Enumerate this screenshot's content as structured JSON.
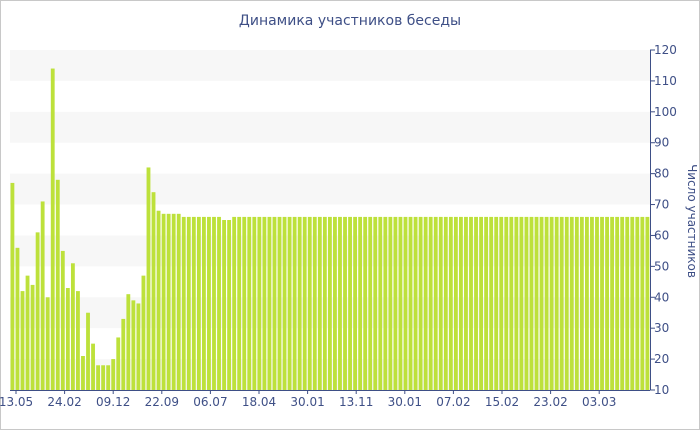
{
  "chart_data": {
    "type": "bar",
    "title": "Динамика участников беседы",
    "ylabel": "Число участников",
    "xlabel": "",
    "ylim": [
      10,
      120
    ],
    "yticks": [
      10,
      20,
      30,
      40,
      50,
      60,
      70,
      80,
      90,
      100,
      110,
      120
    ],
    "y_axis_position": "right",
    "grid": "horizontal alternating bands",
    "x_tick_labels": [
      "13.05",
      "24.02",
      "09.12",
      "22.09",
      "06.07",
      "18.04",
      "30.01",
      "13.11",
      "30.01",
      "07.02",
      "15.02",
      "23.02",
      "03.03"
    ],
    "values": [
      77,
      56,
      42,
      47,
      44,
      61,
      71,
      40,
      114,
      78,
      55,
      43,
      51,
      42,
      21,
      35,
      25,
      18,
      18,
      18,
      20,
      27,
      33,
      41,
      39,
      38,
      47,
      82,
      74,
      68,
      67,
      67,
      67,
      67,
      66,
      66,
      66,
      66,
      66,
      66,
      66,
      66,
      65,
      65,
      66,
      66,
      66,
      66,
      66,
      66,
      66,
      66,
      66,
      66,
      66,
      66,
      66,
      66,
      66,
      66,
      66,
      66,
      66,
      66,
      66,
      66,
      66,
      66,
      66,
      66,
      66,
      66,
      66,
      66,
      66,
      66,
      66,
      66,
      66,
      66,
      66,
      66,
      66,
      66,
      66,
      66,
      66,
      66,
      66,
      66,
      66,
      66,
      66,
      66,
      66,
      66,
      66,
      66,
      66,
      66,
      66,
      66,
      66,
      66,
      66,
      66,
      66,
      66,
      66,
      66,
      66,
      66,
      66,
      66,
      66,
      66,
      66,
      66,
      66,
      66,
      66,
      66,
      66,
      66,
      66,
      66,
      66
    ],
    "colors": {
      "bar": "#bde13b",
      "band": "#f7f7f7",
      "axis": "#3e4f86",
      "text": "#3e4f86",
      "border": "#c8c8c8"
    }
  }
}
